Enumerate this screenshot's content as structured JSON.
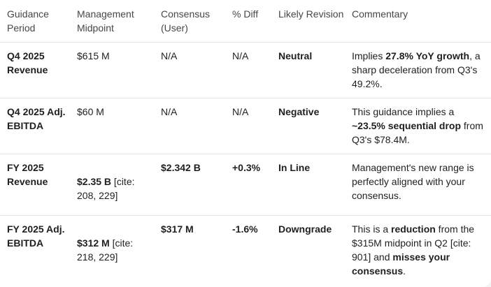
{
  "table": {
    "headers": [
      "Guidance Period",
      "Management Midpoint",
      "Consensus (User)",
      "% Diff",
      "Likely Revision",
      "Commentary"
    ],
    "rows": [
      {
        "period": "Q4 2025 Revenue",
        "midpoint": "$615 M",
        "midpoint_cite": "",
        "consensus": "N/A",
        "diff": "N/A",
        "revision": "Neutral",
        "commentary": [
          {
            "t": "Implies ",
            "b": false
          },
          {
            "t": "27.8% YoY growth",
            "b": true
          },
          {
            "t": ", a sharp deceleration from Q3's 49.2%.",
            "b": false
          }
        ]
      },
      {
        "period": "Q4 2025 Adj. EBITDA",
        "midpoint": "$60 M",
        "midpoint_cite": "",
        "consensus": "N/A",
        "diff": "N/A",
        "revision": "Negative",
        "commentary": [
          {
            "t": "This guidance implies a ",
            "b": false
          },
          {
            "t": "~23.5% sequential drop",
            "b": true
          },
          {
            "t": " from Q3's $78.4M.",
            "b": false
          }
        ]
      },
      {
        "period": "FY 2025 Revenue",
        "midpoint": "$2.35 B",
        "midpoint_cite": " [cite: 208, 229]",
        "consensus": "$2.342 B",
        "diff": "+0.3%",
        "revision": "In Line",
        "commentary": [
          {
            "t": "Management's new range is perfectly aligned with your consensus.",
            "b": false
          }
        ]
      },
      {
        "period": "FY 2025 Adj. EBITDA",
        "midpoint": "$312 M",
        "midpoint_cite": " [cite: 218, 229]",
        "consensus": "$317 M",
        "diff": "-1.6%",
        "revision": "Downgrade",
        "commentary": [
          {
            "t": "This is a ",
            "b": false
          },
          {
            "t": "reduction",
            "b": true
          },
          {
            "t": " from the $315M midpoint in Q2 [cite: 901] and ",
            "b": false
          },
          {
            "t": "misses your consensus",
            "b": true
          },
          {
            "t": ".",
            "b": false
          }
        ]
      }
    ]
  }
}
